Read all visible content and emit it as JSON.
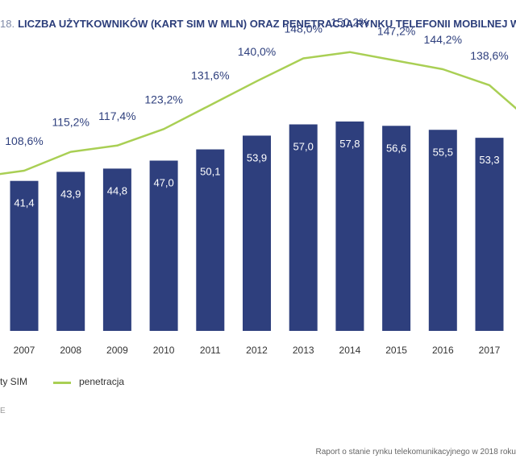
{
  "title": {
    "number": "18.",
    "text": "LICZBA UŻYTKOWNIKÓW (KART SIM W MLN) ORAZ PENETRACJA RYNKU TELEFONII MOBILNEJ W PO"
  },
  "colors": {
    "bar": "#2e3f7d",
    "line": "#a9cf54",
    "bar_label": "#ffffff",
    "line_label": "#2e3f7d"
  },
  "chart_data": {
    "type": "bar",
    "categories": [
      "2007",
      "2008",
      "2009",
      "2010",
      "2011",
      "2012",
      "2013",
      "2014",
      "2015",
      "2016",
      "2017"
    ],
    "series": [
      {
        "type": "bar",
        "values": [
          41.4,
          43.9,
          44.8,
          47.0,
          50.1,
          53.9,
          57.0,
          57.8,
          56.6,
          55.5,
          53.3
        ],
        "labels": [
          "41,4",
          "43,9",
          "44,8",
          "47,0",
          "50,1",
          "53,9",
          "57,0",
          "57,8",
          "56,6",
          "55,5",
          "53,3"
        ]
      },
      {
        "name": "penetracja",
        "type": "line",
        "values": [
          108.6,
          115.2,
          117.4,
          123.2,
          131.6,
          140.0,
          148.0,
          150.2,
          147.2,
          144.2,
          138.6
        ],
        "labels": [
          "108,6%",
          "115,2%",
          "117,4%",
          "123,2%",
          "131,6%",
          "140,0%",
          "148,0%",
          "150,2%",
          "147,2%",
          "144,2%",
          "138,6%"
        ]
      }
    ],
    "legend": [
      "ty SIM",
      "penetracja"
    ],
    "legend_position": "bottom"
  },
  "source_fragment": "E",
  "footer": "Raport o stanie rynku telekomunikacyjnego w 2018 roku"
}
